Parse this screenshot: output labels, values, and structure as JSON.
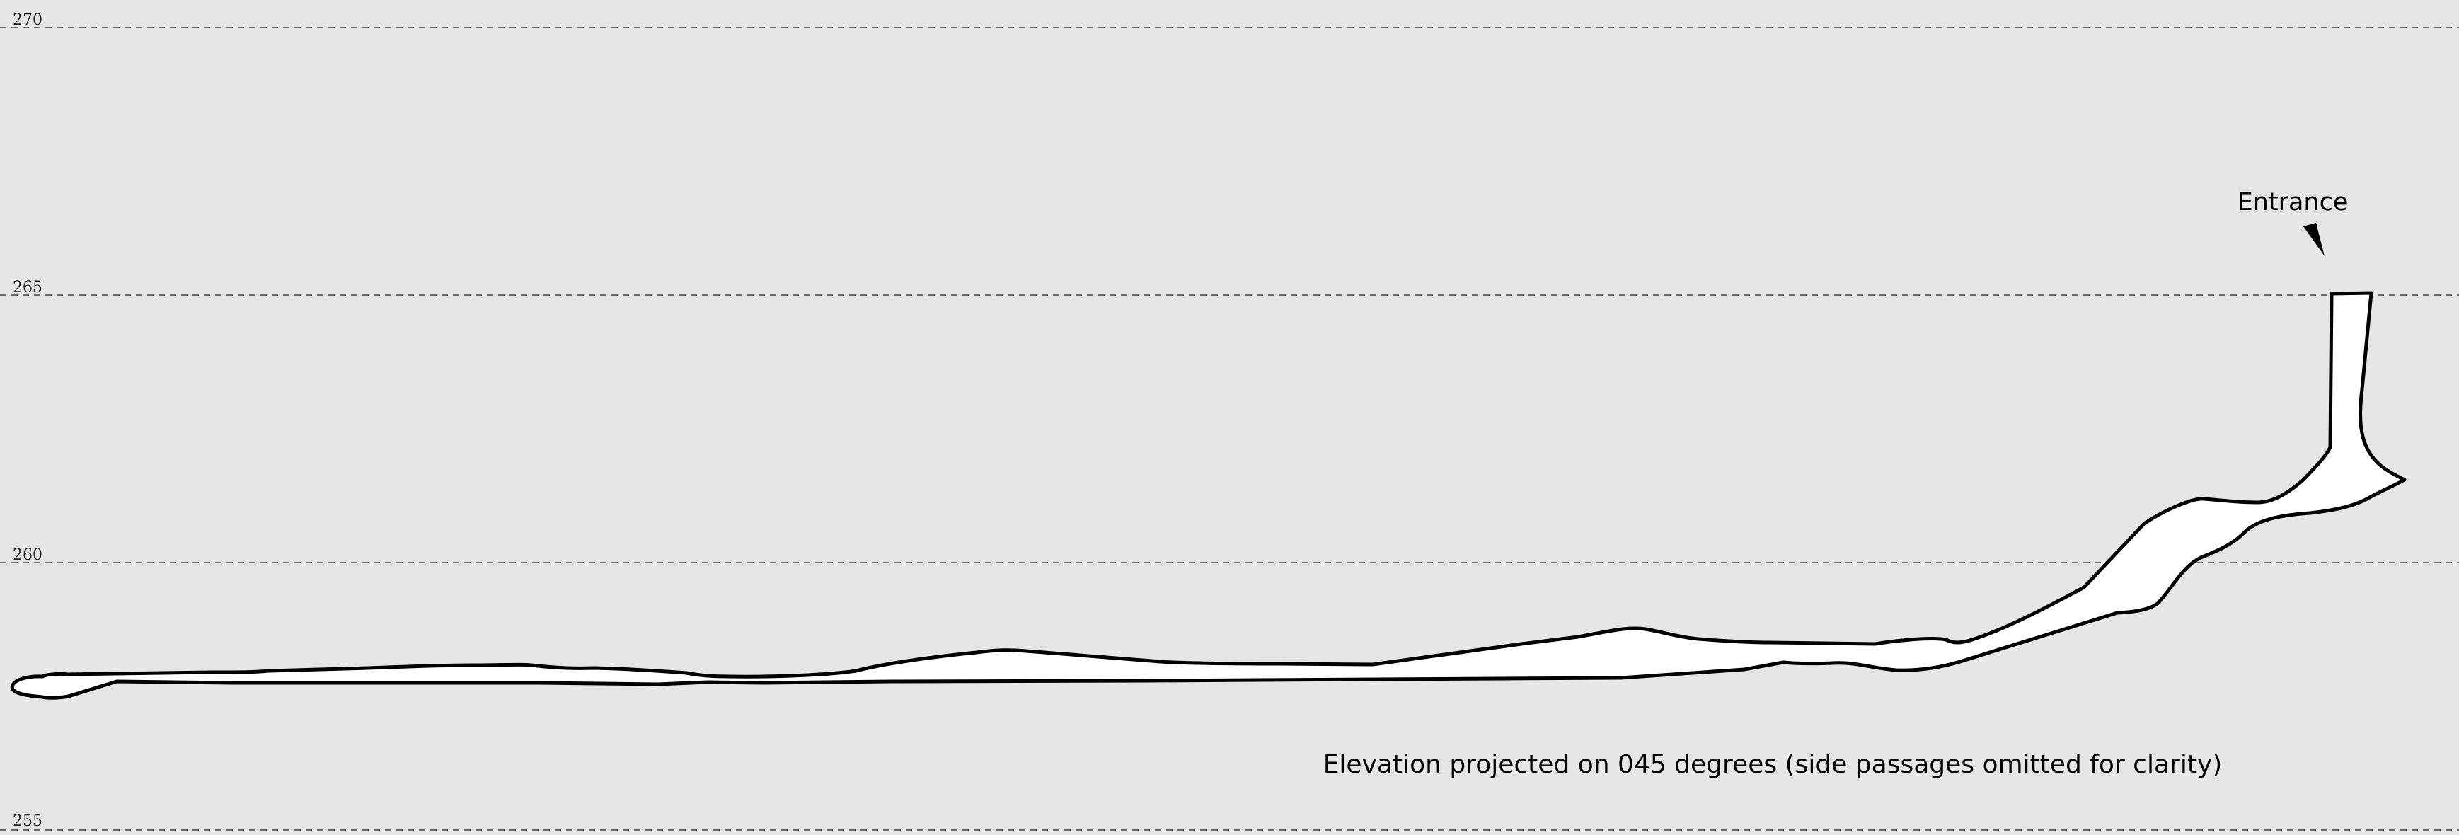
{
  "elevation_axis": {
    "unit": "",
    "levels": [
      270,
      265,
      260,
      255
    ]
  },
  "labels": {
    "entrance": "Entrance",
    "caption": "Elevation projected on 045 degrees (side passages omitted for clarity)"
  },
  "colors": {
    "background": "#e6e6e6",
    "passage_fill": "#ffffff",
    "outline": "#000000",
    "gridline": "#6a6a6a"
  },
  "icons": {
    "entrance_marker": "arrow-pointer-icon"
  }
}
